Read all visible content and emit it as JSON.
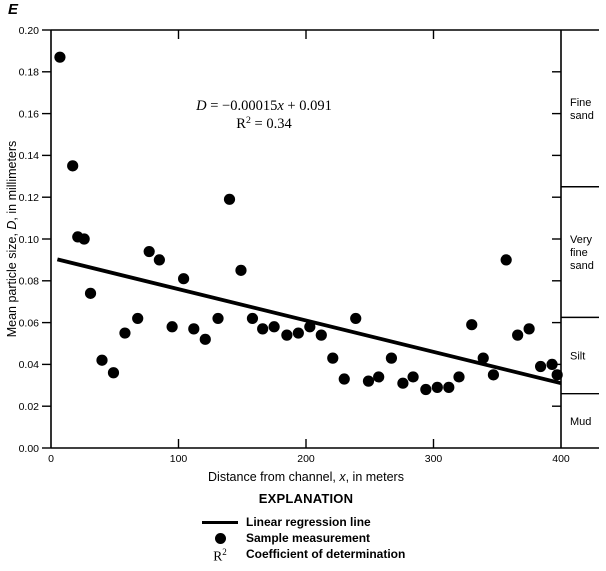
{
  "panel_label": "E",
  "colors": {
    "ink": "#000000",
    "background": "#ffffff"
  },
  "chart_data": {
    "type": "scatter",
    "xlabel_tokens": [
      {
        "t": "Distance from channel, "
      },
      {
        "t": "x",
        "i": true
      },
      {
        "t": ", in meters"
      }
    ],
    "ylabel_tokens": [
      {
        "t": "Mean particle size, "
      },
      {
        "t": "D",
        "i": true
      },
      {
        "t": ", in millimeters"
      }
    ],
    "xlim": [
      0,
      400
    ],
    "ylim": [
      0,
      0.2
    ],
    "x_ticks": [
      0,
      100,
      200,
      300,
      400
    ],
    "y_ticks": [
      0,
      0.02,
      0.04,
      0.06,
      0.08,
      0.1,
      0.12,
      0.14,
      0.16,
      0.18,
      0.2
    ],
    "y_tick_decimals": 2,
    "equation_tokens": [
      {
        "t": "D",
        "i": true
      },
      {
        "t": " = −0.00015"
      },
      {
        "t": "x",
        "i": true
      },
      {
        "t": " + 0.091"
      }
    ],
    "r2_tokens": [
      {
        "t": "R"
      },
      {
        "t": "2",
        "sup": true
      },
      {
        "t": " = 0.34"
      }
    ],
    "regression": {
      "slope": -0.00015,
      "intercept": 0.091,
      "r2": 0.34,
      "x_start": 5,
      "x_end": 400
    },
    "points": [
      [
        7,
        0.187
      ],
      [
        17,
        0.135
      ],
      [
        21,
        0.101
      ],
      [
        26,
        0.1
      ],
      [
        31,
        0.074
      ],
      [
        40,
        0.042
      ],
      [
        49,
        0.036
      ],
      [
        58,
        0.055
      ],
      [
        68,
        0.062
      ],
      [
        77,
        0.094
      ],
      [
        85,
        0.09
      ],
      [
        95,
        0.058
      ],
      [
        104,
        0.081
      ],
      [
        112,
        0.057
      ],
      [
        121,
        0.052
      ],
      [
        131,
        0.062
      ],
      [
        140,
        0.119
      ],
      [
        149,
        0.085
      ],
      [
        158,
        0.062
      ],
      [
        166,
        0.057
      ],
      [
        175,
        0.058
      ],
      [
        185,
        0.054
      ],
      [
        194,
        0.055
      ],
      [
        203,
        0.058
      ],
      [
        212,
        0.054
      ],
      [
        221,
        0.043
      ],
      [
        230,
        0.033
      ],
      [
        239,
        0.062
      ],
      [
        249,
        0.032
      ],
      [
        257,
        0.034
      ],
      [
        267,
        0.043
      ],
      [
        276,
        0.031
      ],
      [
        284,
        0.034
      ],
      [
        294,
        0.028
      ],
      [
        303,
        0.029
      ],
      [
        312,
        0.029
      ],
      [
        320,
        0.034
      ],
      [
        330,
        0.059
      ],
      [
        339,
        0.043
      ],
      [
        347,
        0.035
      ],
      [
        357,
        0.09
      ],
      [
        366,
        0.054
      ],
      [
        375,
        0.057
      ],
      [
        384,
        0.039
      ],
      [
        393,
        0.04
      ],
      [
        397,
        0.035
      ]
    ],
    "grain_size_scale": {
      "classes": [
        {
          "label": "Fine sand",
          "lines": [
            "Fine",
            "sand"
          ],
          "min": 0.125,
          "max": 0.2
        },
        {
          "label": "Very fine sand",
          "lines": [
            "Very",
            "fine",
            "sand"
          ],
          "min": 0.0625,
          "max": 0.125
        },
        {
          "label": "Silt",
          "lines": [
            "Silt"
          ],
          "min": 0.026,
          "max": 0.0625
        },
        {
          "label": "Mud",
          "lines": [
            "Mud"
          ],
          "min": 0,
          "max": 0.026
        }
      ],
      "minor_ticks": [
        0.02,
        0.04,
        0.06,
        0.08,
        0.1,
        0.12,
        0.14,
        0.16,
        0.18
      ]
    }
  },
  "legend": {
    "title": "EXPLANATION",
    "items": [
      {
        "symbol": "line",
        "label": "Linear regression line"
      },
      {
        "symbol": "dot",
        "label": "Sample measurement"
      },
      {
        "symbol": "r2",
        "symbol_tokens": [
          {
            "t": "R"
          },
          {
            "t": "2",
            "sup": true
          }
        ],
        "label": "Coefficient of determination"
      }
    ]
  }
}
